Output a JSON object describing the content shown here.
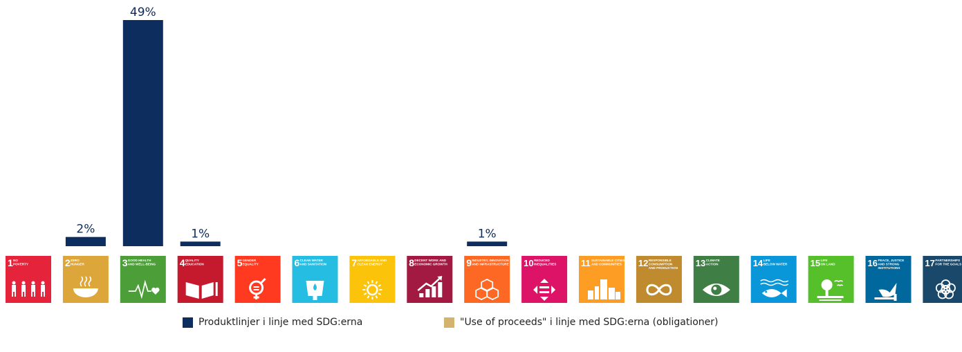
{
  "colors": {
    "product": "#0d2d5e",
    "use_of_proceeds": "#d4b36e"
  },
  "chart_data": {
    "type": "bar",
    "categories": [
      "1",
      "2",
      "3",
      "4",
      "5",
      "6",
      "7",
      "8",
      "9",
      "10",
      "11",
      "12",
      "13",
      "14",
      "15",
      "16",
      "17"
    ],
    "series": [
      {
        "name": "Produktlinjer i linje med SDG:erna",
        "values": [
          0,
          2,
          49,
          1,
          0,
          0,
          0,
          0,
          1,
          0,
          0,
          0,
          0,
          0,
          0,
          0,
          0
        ],
        "labels": [
          "",
          "2%",
          "49%",
          "1%",
          "",
          "",
          "",
          "",
          "1%",
          "",
          "",
          "",
          "",
          "",
          "",
          "",
          ""
        ]
      },
      {
        "name": "\"Use of proceeds\" i linje med SDG:erna (obligationer)",
        "values": [
          0,
          0,
          0,
          0,
          0,
          0,
          0,
          0,
          0,
          0,
          0,
          0,
          0,
          0,
          0,
          0,
          0
        ]
      }
    ],
    "ylim": [
      0,
      49
    ],
    "legend_position": "bottom"
  },
  "goals": [
    {
      "num": "1",
      "lines": [
        "NO",
        "POVERTY"
      ],
      "color": "#e5243b",
      "icon": "people-icon"
    },
    {
      "num": "2",
      "lines": [
        "ZERO",
        "HUNGER"
      ],
      "color": "#dda63a",
      "icon": "bowl-icon"
    },
    {
      "num": "3",
      "lines": [
        "GOOD HEALTH",
        "AND WELL-BEING"
      ],
      "color": "#4c9f38",
      "icon": "heartbeat-icon"
    },
    {
      "num": "4",
      "lines": [
        "QUALITY",
        "EDUCATION"
      ],
      "color": "#c5192d",
      "icon": "book-icon"
    },
    {
      "num": "5",
      "lines": [
        "GENDER",
        "EQUALITY"
      ],
      "color": "#ff3a21",
      "icon": "gender-icon"
    },
    {
      "num": "6",
      "lines": [
        "CLEAN WATER",
        "AND SANITATION"
      ],
      "color": "#26bde2",
      "icon": "water-drop-icon"
    },
    {
      "num": "7",
      "lines": [
        "AFFORDABLE AND",
        "CLEAN ENERGY"
      ],
      "color": "#fcc30b",
      "icon": "sun-icon"
    },
    {
      "num": "8",
      "lines": [
        "DECENT WORK AND",
        "ECONOMIC GROWTH"
      ],
      "color": "#a21942",
      "icon": "growth-chart-icon"
    },
    {
      "num": "9",
      "lines": [
        "INDUSTRY, INNOVATION",
        "AND INFRASTRUCTURE"
      ],
      "color": "#fd6925",
      "icon": "cubes-icon"
    },
    {
      "num": "10",
      "lines": [
        "REDUCED",
        "INEQUALITIES"
      ],
      "color": "#dd1367",
      "icon": "equal-arrows-icon"
    },
    {
      "num": "11",
      "lines": [
        "SUSTAINABLE CITIES",
        "AND COMMUNITIES"
      ],
      "color": "#fd9d24",
      "icon": "city-icon"
    },
    {
      "num": "12",
      "lines": [
        "RESPONSIBLE",
        "CONSUMPTION",
        "AND PRODUCTION"
      ],
      "color": "#bf8b2e",
      "icon": "infinity-icon"
    },
    {
      "num": "13",
      "lines": [
        "CLIMATE",
        "ACTION"
      ],
      "color": "#3f7e44",
      "icon": "eye-globe-icon"
    },
    {
      "num": "14",
      "lines": [
        "LIFE",
        "BELOW WATER"
      ],
      "color": "#0a97d9",
      "icon": "fish-icon"
    },
    {
      "num": "15",
      "lines": [
        "LIFE",
        "ON LAND"
      ],
      "color": "#56c02b",
      "icon": "tree-icon"
    },
    {
      "num": "16",
      "lines": [
        "PEACE, JUSTICE",
        "AND STRONG",
        "INSTITUTIONS"
      ],
      "color": "#00689d",
      "icon": "dove-icon"
    },
    {
      "num": "17",
      "lines": [
        "PARTNERSHIPS",
        "FOR THE GOALS"
      ],
      "color": "#19486a",
      "icon": "rings-icon"
    }
  ]
}
